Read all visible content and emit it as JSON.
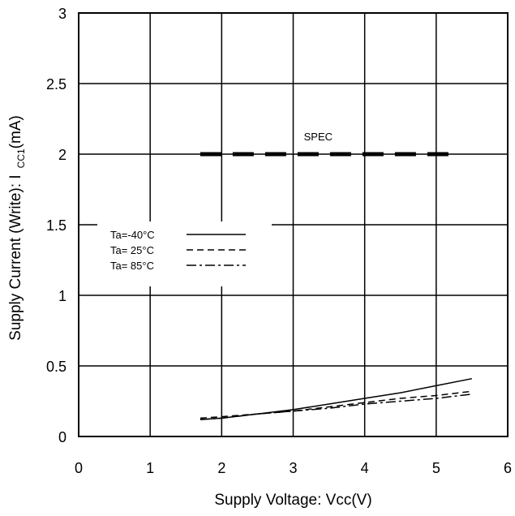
{
  "chart_data": {
    "type": "line",
    "title": "",
    "xlabel": "Supply Voltage: Vcc(V)",
    "ylabel": "Supply Current (Write): I",
    "ylabel_subscript": "CC1",
    "ylabel_unit": "(mA)",
    "xlim": [
      0,
      6
    ],
    "ylim": [
      0,
      3
    ],
    "x_ticks": [
      0,
      1,
      2,
      3,
      4,
      5,
      6
    ],
    "x_tick_labels": [
      "0",
      "1",
      "2",
      "3",
      "4",
      "5",
      "6"
    ],
    "y_ticks": [
      0,
      0.5,
      1,
      1.5,
      2,
      2.5,
      3
    ],
    "y_tick_labels": [
      "0",
      "0.5",
      "1",
      "1.5",
      "2",
      "2.5",
      "3"
    ],
    "grid": true,
    "legend_position": "left",
    "series": [
      {
        "name": "Ta=-40°C",
        "style": "solid",
        "x": [
          1.7,
          2.0,
          2.5,
          3.0,
          3.5,
          4.0,
          4.5,
          5.0,
          5.5
        ],
        "y": [
          0.12,
          0.13,
          0.16,
          0.19,
          0.23,
          0.27,
          0.31,
          0.36,
          0.41
        ]
      },
      {
        "name": "Ta= 25°C",
        "style": "dashed",
        "x": [
          1.7,
          2.0,
          2.5,
          3.0,
          3.5,
          4.0,
          4.5,
          5.0,
          5.5
        ],
        "y": [
          0.13,
          0.14,
          0.16,
          0.18,
          0.21,
          0.24,
          0.27,
          0.29,
          0.32
        ]
      },
      {
        "name": "Ta= 85°C",
        "style": "dashdot",
        "x": [
          1.7,
          2.0,
          2.5,
          3.0,
          3.5,
          4.0,
          4.5,
          5.0,
          5.5
        ],
        "y": [
          0.12,
          0.13,
          0.16,
          0.18,
          0.2,
          0.23,
          0.25,
          0.27,
          0.3
        ]
      }
    ],
    "reference_line": {
      "label": "SPEC",
      "x": [
        1.7,
        5.3
      ],
      "y": 2
    }
  }
}
